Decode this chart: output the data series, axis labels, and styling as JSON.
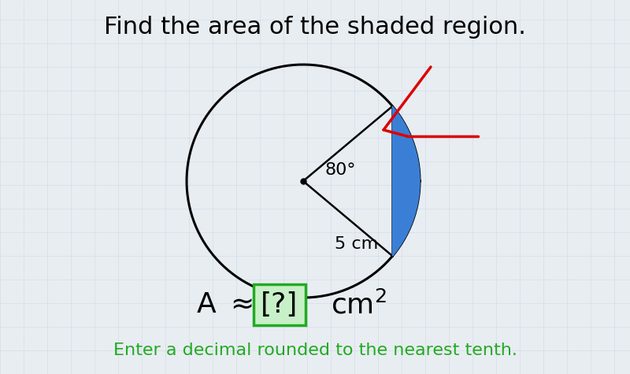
{
  "title": "Find the area of the shaded region.",
  "title_fontsize": 22,
  "bg_color": "#e8edf2",
  "circle_color": "black",
  "circle_linewidth": 2.2,
  "segment_fill_color": "#3a7fd5",
  "sector_line_color": "black",
  "sector_linewidth": 1.8,
  "dot_color": "black",
  "dot_size": 5,
  "angle_label": "80°",
  "radius_label": "5 cm",
  "formula_fontsize": 26,
  "green_text": "Enter a decimal rounded to the nearest tenth.",
  "green_color": "#22aa22",
  "green_fontsize": 16,
  "arrow_color": "#dd0000",
  "arrow_linewidth": 2.5,
  "grid_color": "#b8c8d8",
  "grid_alpha": 0.4,
  "box_fill": "#c8f0c8",
  "box_edge": "#22aa22"
}
